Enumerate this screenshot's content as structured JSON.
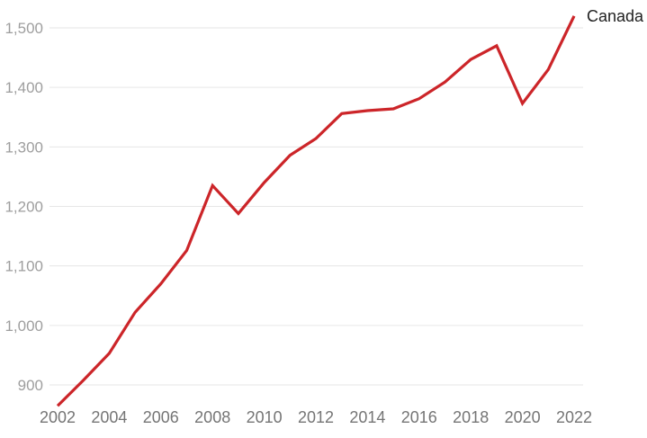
{
  "chart_data": {
    "type": "line",
    "title": "",
    "xlabel": "",
    "ylabel": "",
    "xlim": [
      2002,
      2022
    ],
    "ylim": [
      900,
      1500
    ],
    "grid": "horizontal-only",
    "legend_position": "right-of-line-end",
    "x": [
      2002,
      2003,
      2004,
      2005,
      2006,
      2007,
      2008,
      2009,
      2010,
      2011,
      2012,
      2013,
      2014,
      2015,
      2016,
      2017,
      2018,
      2019,
      2020,
      2021,
      2022
    ],
    "series": [
      {
        "name": "Canada",
        "color": "#cc2529",
        "values": [
          865,
          908,
          953,
          1022,
          1070,
          1126,
          1235,
          1188,
          1240,
          1286,
          1314,
          1356,
          1361,
          1364,
          1381,
          1409,
          1447,
          1470,
          1373,
          1430,
          1520
        ]
      }
    ],
    "x_ticks": [
      2002,
      2004,
      2006,
      2008,
      2010,
      2012,
      2014,
      2016,
      2018,
      2020,
      2022
    ],
    "x_tick_labels": [
      "2002",
      "2004",
      "2006",
      "2008",
      "2010",
      "2012",
      "2014",
      "2016",
      "2018",
      "2020",
      "2022"
    ],
    "y_ticks": [
      900,
      1000,
      1100,
      1200,
      1300,
      1400,
      1500
    ],
    "y_tick_labels": [
      "900",
      "1,000",
      "1,100",
      "1,200",
      "1,300",
      "1,400",
      "1,500"
    ]
  },
  "theme": {
    "background_color": "#ffffff",
    "grid_color": "#e6e6e6",
    "y_tick_label_color": "#9e9e9e",
    "x_tick_label_color": "#757575",
    "series_label_color": "#212121",
    "line_color": "#cc2529"
  }
}
